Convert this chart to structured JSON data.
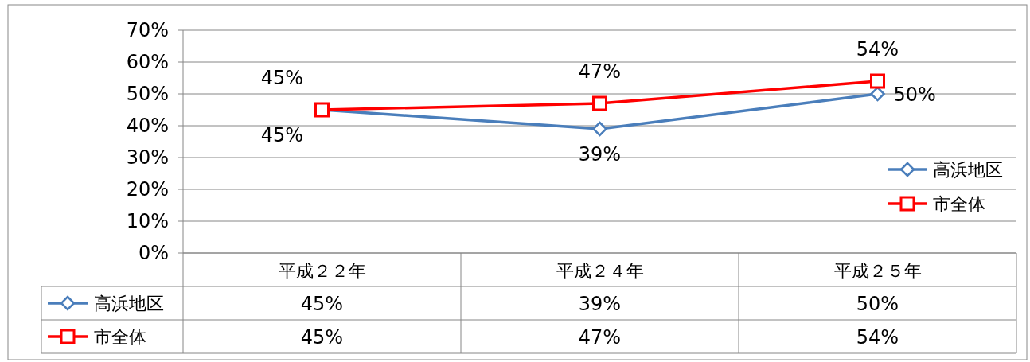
{
  "chart_data": {
    "type": "line",
    "categories": [
      "平成２２年",
      "平成２４年",
      "平成２５年"
    ],
    "series": [
      {
        "name": "高浜地区",
        "color": "#4a7ebb",
        "values": [
          45,
          39,
          50
        ],
        "value_labels": [
          "45%",
          "39%",
          "50%"
        ],
        "marker": "diamond"
      },
      {
        "name": "市全体",
        "color": "#ff0000",
        "values": [
          45,
          47,
          54
        ],
        "value_labels": [
          "45%",
          "47%",
          "54%"
        ],
        "marker": "square"
      }
    ],
    "ylim": [
      0,
      70
    ],
    "yticks": [
      {
        "value": 0,
        "label": "0%"
      },
      {
        "value": 10,
        "label": "10%"
      },
      {
        "value": 20,
        "label": "20%"
      },
      {
        "value": 30,
        "label": "30%"
      },
      {
        "value": 40,
        "label": "40%"
      },
      {
        "value": 50,
        "label": "50%"
      },
      {
        "value": 60,
        "label": "60%"
      },
      {
        "value": 70,
        "label": "70%"
      }
    ],
    "grid": "y",
    "legend": "right"
  }
}
